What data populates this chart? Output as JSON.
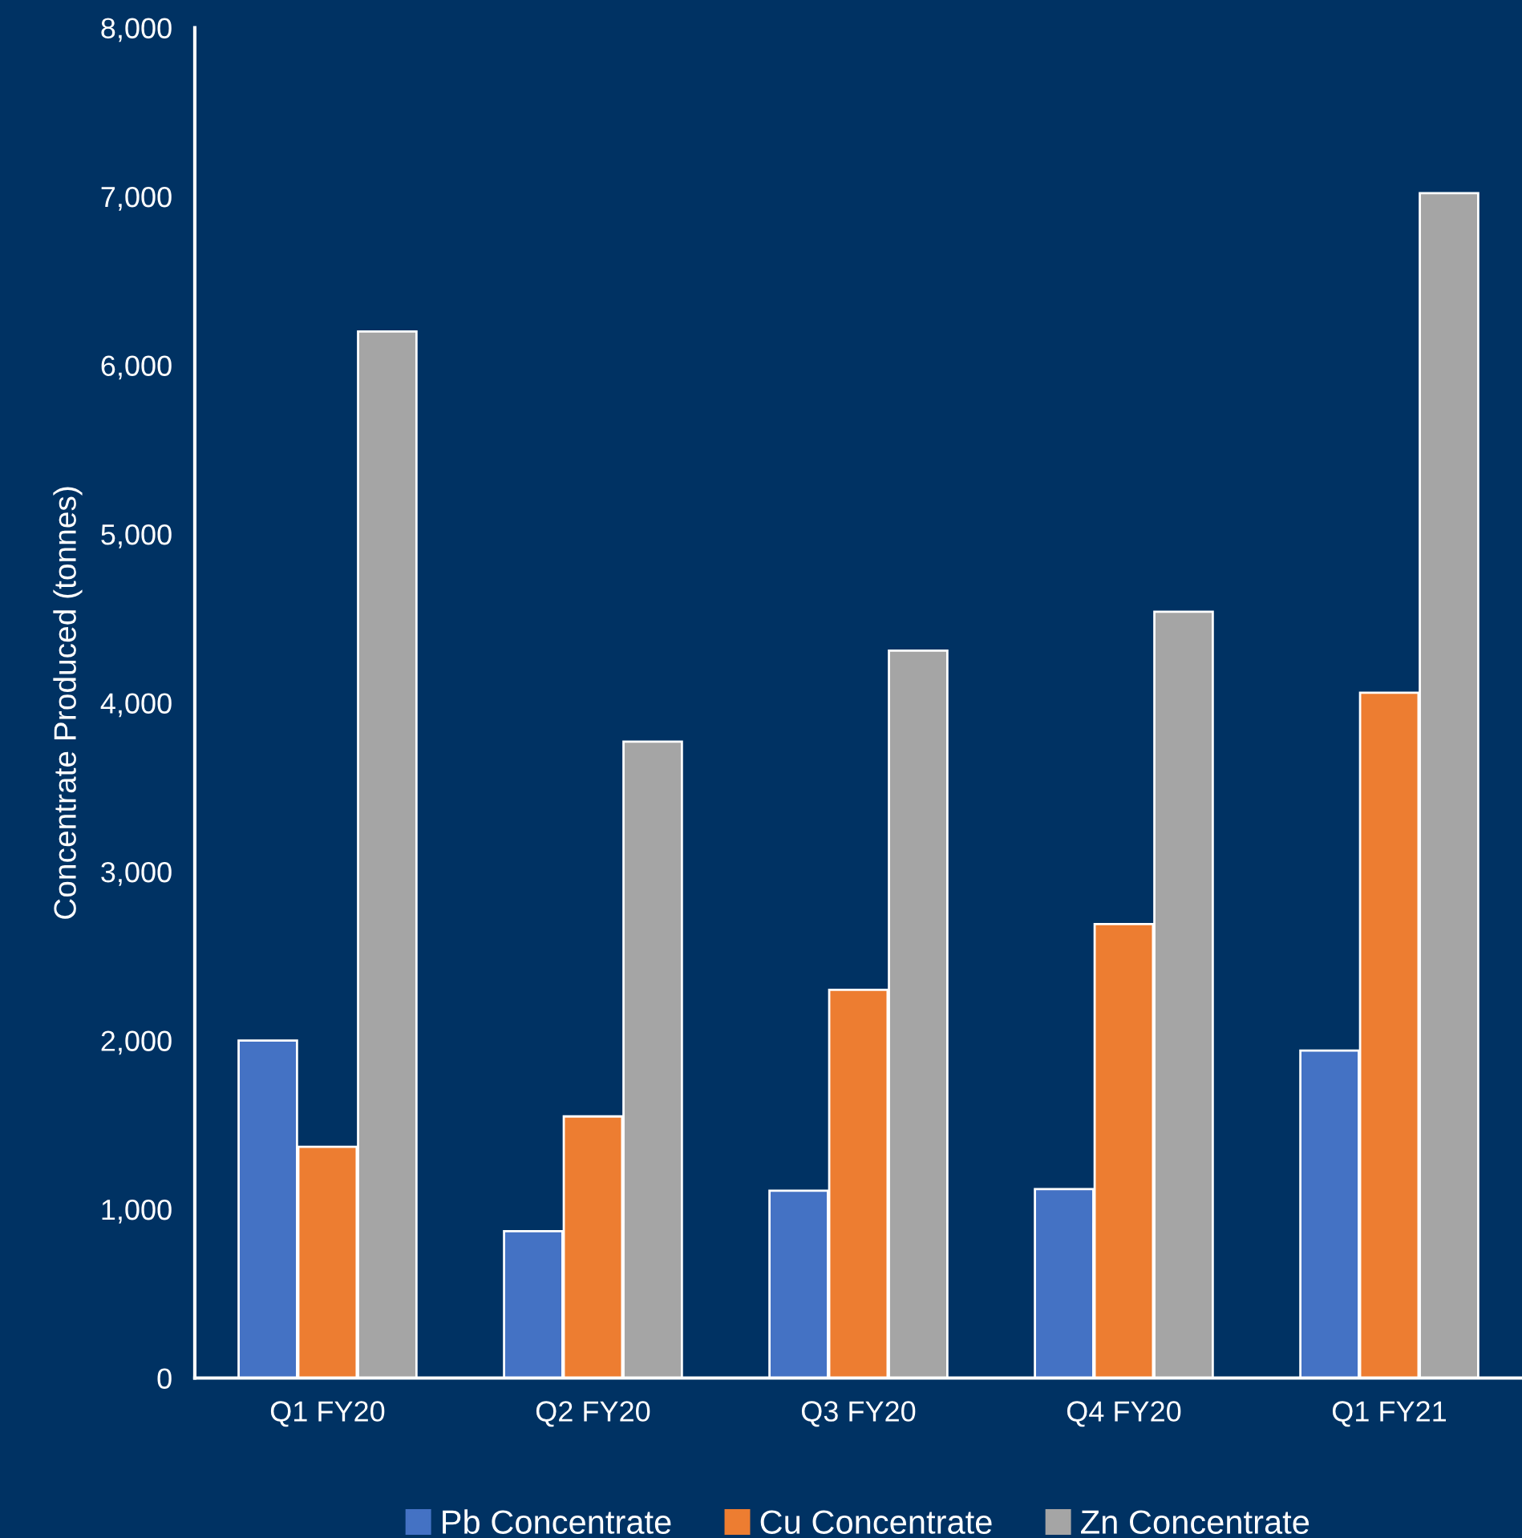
{
  "chart_data": {
    "type": "bar",
    "ylabel": "Concentrate Produced (tonnes)",
    "categories": [
      "Q1 FY20",
      "Q2 FY20",
      "Q3 FY20",
      "Q4 FY20",
      "Q1 FY21"
    ],
    "series": [
      {
        "name": "Pb Concentrate",
        "color": "#4472c4",
        "values": [
          2000,
          870,
          1110,
          1120,
          1940
        ]
      },
      {
        "name": "Cu Concentrate",
        "color": "#ed7d31",
        "values": [
          1370,
          1550,
          2300,
          2690,
          4060
        ]
      },
      {
        "name": "Zn Concentrate",
        "color": "#a5a5a5",
        "values": [
          6200,
          3770,
          4310,
          4540,
          7020
        ]
      }
    ],
    "ylim": [
      0,
      8000
    ],
    "yticks": [
      {
        "value": 0,
        "label": "0"
      },
      {
        "value": 1000,
        "label": "1,000"
      },
      {
        "value": 2000,
        "label": "2,000"
      },
      {
        "value": 3000,
        "label": "3,000"
      },
      {
        "value": 4000,
        "label": "4,000"
      },
      {
        "value": 5000,
        "label": "5,000"
      },
      {
        "value": 6000,
        "label": "6,000"
      },
      {
        "value": 7000,
        "label": "7,000"
      },
      {
        "value": 8000,
        "label": "8,000"
      }
    ],
    "grid": false,
    "legend": "bottom"
  }
}
